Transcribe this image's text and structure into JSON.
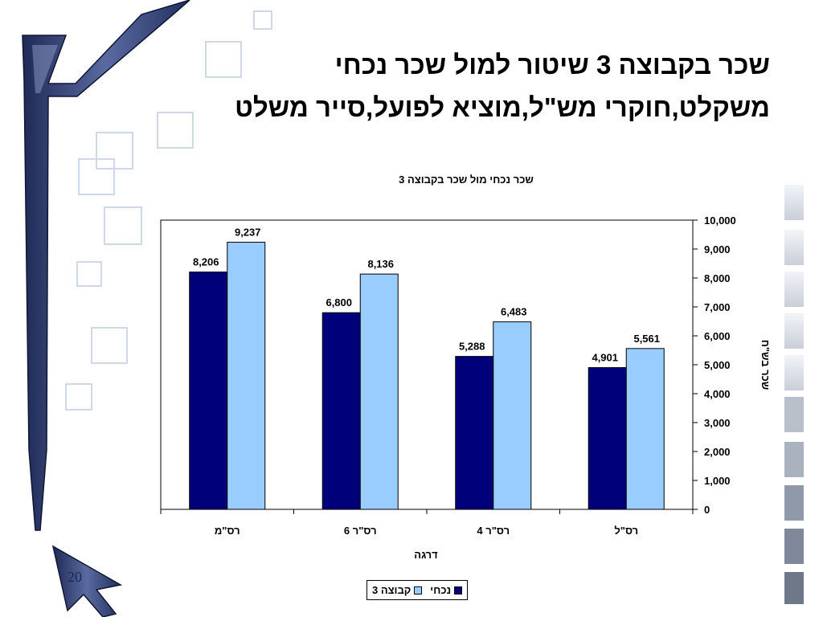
{
  "slide": {
    "title_line1": "שכר בקבוצה 3 שיטור למול שכר נכחי",
    "title_line2": "משקלט,חוקרי מש\"ל,מוציא לפועל,סייר משלט",
    "page_number": "20"
  },
  "colors": {
    "series_current": "#00007a",
    "series_group3": "#99ccff",
    "frame_blue": "#33427a"
  },
  "chart_data": {
    "type": "bar",
    "title": "שכר נכחי מול שכר בקבוצה 3",
    "xlabel": "דרגה",
    "ylabel": "שכר בש\"ח",
    "categories": [
      "רס\"ל",
      "רס\"ר 4",
      "רס\"ר 6",
      "רס\"מ"
    ],
    "category_order": "right-to-left",
    "series": [
      {
        "name": "נכחי",
        "values": [
          4901,
          5288,
          6800,
          8206
        ]
      },
      {
        "name": "קבוצה 3",
        "values": [
          5561,
          6483,
          8136,
          9237
        ]
      }
    ],
    "value_labels": {
      "current": [
        "4,901",
        "5,288",
        "6,800",
        "8,206"
      ],
      "group3": [
        "5,561",
        "6,483",
        "8,136",
        "9,237"
      ]
    },
    "ylim": [
      0,
      10000
    ],
    "y_axis_position": "right",
    "yticks": [
      "0",
      "1,000",
      "2,000",
      "3,000",
      "4,000",
      "5,000",
      "6,000",
      "7,000",
      "8,000",
      "9,000",
      "10,000"
    ],
    "grid": false,
    "legend_position": "bottom"
  }
}
